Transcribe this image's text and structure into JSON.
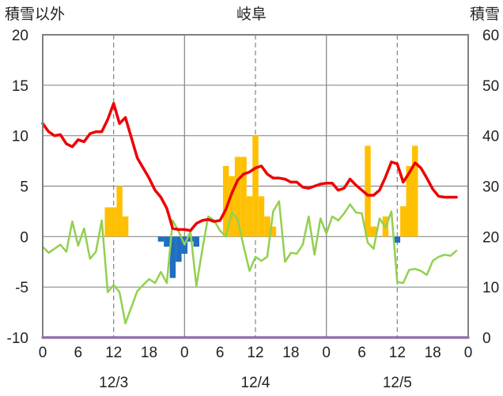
{
  "chart_data": {
    "type": "bar+line",
    "title": "岐阜",
    "left_axis_label": "積雪以外",
    "right_axis_label": "積雪",
    "left_ylim": [
      -10,
      20
    ],
    "left_yticks": [
      -10,
      -5,
      0,
      5,
      10,
      15,
      20
    ],
    "right_ylim": [
      0,
      60
    ],
    "right_yticks": [
      0,
      10,
      20,
      30,
      40,
      50,
      60
    ],
    "x_range_hours": [
      0,
      72
    ],
    "x_tick_labels": [
      "0",
      "6",
      "12",
      "18",
      "0",
      "6",
      "12",
      "18",
      "0",
      "6",
      "12",
      "18",
      "0"
    ],
    "date_labels": [
      "12/3",
      "12/4",
      "12/5"
    ],
    "grid": "dashed vertical lines at 12:00; solid vertical lines at day boundaries; horizontal lines every 5 units",
    "colors": {
      "temperature": "#ee0000",
      "precip_positive": "#ffc000",
      "precip_negative": "#1f6fc0",
      "green_series": "#92d050",
      "snow_depth": "#7030a0",
      "grid": "#8c8c8c",
      "frame": "#808080"
    },
    "series": [
      {
        "key": "temperature",
        "axis": "left",
        "x": [
          0,
          1,
          2,
          3,
          4,
          5,
          6,
          7,
          8,
          9,
          10,
          11,
          12,
          13,
          14,
          15,
          16,
          17,
          18,
          19,
          20,
          21,
          22,
          23,
          24,
          25,
          26,
          27,
          28,
          29,
          30,
          31,
          32,
          33,
          34,
          35,
          36,
          37,
          38,
          39,
          40,
          41,
          42,
          43,
          44,
          45,
          46,
          47,
          48,
          49,
          50,
          51,
          52,
          53,
          54,
          55,
          56,
          57,
          58,
          59,
          60,
          61,
          62,
          63,
          64,
          65,
          66,
          67,
          68,
          69,
          70
        ],
        "values": [
          11.2,
          10.4,
          10.0,
          10.1,
          9.2,
          8.9,
          9.6,
          9.4,
          10.2,
          10.4,
          10.4,
          11.6,
          13.2,
          11.2,
          11.8,
          9.8,
          7.8,
          6.8,
          5.8,
          4.6,
          3.9,
          2.8,
          0.8,
          0.7,
          0.7,
          0.6,
          1.3,
          1.6,
          1.7,
          1.5,
          1.6,
          2.7,
          4.3,
          5.6,
          6.2,
          6.4,
          6.8,
          7.0,
          6.2,
          5.8,
          5.8,
          5.7,
          5.4,
          5.4,
          4.9,
          4.8,
          5.0,
          5.2,
          5.3,
          5.3,
          4.6,
          4.8,
          5.7,
          5.1,
          4.6,
          4.1,
          4.1,
          4.6,
          5.9,
          7.4,
          7.2,
          5.4,
          6.3,
          7.3,
          6.8,
          5.8,
          4.7,
          4.0,
          3.9,
          3.9,
          3.9
        ]
      },
      {
        "key": "green_series",
        "axis": "left",
        "x": [
          0,
          1,
          2,
          3,
          4,
          5,
          6,
          7,
          8,
          9,
          10,
          11,
          12,
          13,
          14,
          15,
          16,
          17,
          18,
          19,
          20,
          21,
          22,
          23,
          24,
          25,
          26,
          27,
          28,
          29,
          30,
          31,
          32,
          33,
          34,
          35,
          36,
          37,
          38,
          39,
          40,
          41,
          42,
          43,
          44,
          45,
          46,
          47,
          48,
          49,
          50,
          51,
          52,
          53,
          54,
          55,
          56,
          57,
          58,
          59,
          60,
          61,
          62,
          63,
          64,
          65,
          66,
          67,
          68,
          69,
          70
        ],
        "values": [
          -1.0,
          -1.6,
          -1.2,
          -0.8,
          -1.5,
          1.5,
          -0.9,
          0.8,
          -2.2,
          -1.5,
          1.6,
          -5.5,
          -4.8,
          -5.5,
          -8.6,
          -7.0,
          -5.4,
          -4.8,
          -4.2,
          -4.6,
          -3.5,
          -4.6,
          1.6,
          0.5,
          -0.8,
          0.5,
          -4.9,
          -1.3,
          2.0,
          1.6,
          0.6,
          0,
          2.4,
          1.7,
          -1.0,
          -3.4,
          -2.0,
          -2.4,
          -2.0,
          2.5,
          3.5,
          -2.5,
          -1.6,
          -1.7,
          -0.8,
          2.0,
          -1.8,
          1.8,
          0.3,
          2.0,
          1.6,
          2.3,
          3.2,
          2.4,
          2.3,
          -0.6,
          -1.2,
          1.8,
          0.9,
          2.5,
          -4.5,
          -4.6,
          -3.3,
          -3.2,
          -3.4,
          -3.8,
          -2.4,
          -2.0,
          -1.8,
          -1.9,
          -1.4
        ]
      },
      {
        "key": "precipitation",
        "axis": "left",
        "bars": [
          {
            "x": 11,
            "value": 2.9
          },
          {
            "x": 12,
            "value": 2.9
          },
          {
            "x": 13,
            "value": 5.0
          },
          {
            "x": 14,
            "value": 2.0
          },
          {
            "x": 20,
            "value": -0.5
          },
          {
            "x": 21,
            "value": -1.0
          },
          {
            "x": 22,
            "value": -4.1
          },
          {
            "x": 23,
            "value": -2.5
          },
          {
            "x": 24,
            "value": -1.7
          },
          {
            "x": 25,
            "value": -0.5
          },
          {
            "x": 26,
            "value": -1.0
          },
          {
            "x": 31,
            "value": 7.0
          },
          {
            "x": 32,
            "value": 6.0
          },
          {
            "x": 33,
            "value": 7.9
          },
          {
            "x": 34,
            "value": 7.9
          },
          {
            "x": 35,
            "value": 4.0
          },
          {
            "x": 36,
            "value": 10.0
          },
          {
            "x": 37,
            "value": 4.0
          },
          {
            "x": 38,
            "value": 2.0
          },
          {
            "x": 39,
            "value": 1.0
          },
          {
            "x": 55,
            "value": 9.0
          },
          {
            "x": 56,
            "value": 1.0
          },
          {
            "x": 58,
            "value": 2.0
          },
          {
            "x": 60,
            "value": -0.6
          },
          {
            "x": 61,
            "value": 3.0
          },
          {
            "x": 62,
            "value": 7.0
          },
          {
            "x": 63,
            "value": 9.0
          }
        ]
      },
      {
        "key": "snow_depth",
        "axis": "right",
        "x": [
          0,
          72
        ],
        "values": [
          0,
          0
        ]
      }
    ]
  }
}
